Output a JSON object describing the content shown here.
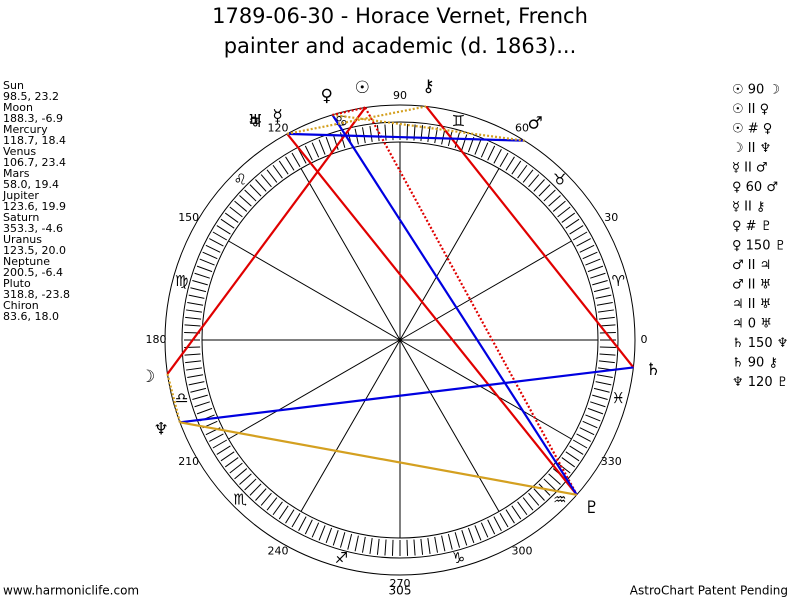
{
  "title": [
    "1789-06-30 - Horace Vernet, French",
    "painter and academic (d. 1863)..."
  ],
  "planets": [
    {
      "name": "Sun",
      "position": "98.5, 23.2",
      "glyph": "☉"
    },
    {
      "name": "Moon",
      "position": "188.3, -6.9",
      "glyph": "☽"
    },
    {
      "name": "Mercury",
      "position": "118.7, 18.4",
      "glyph": "☿"
    },
    {
      "name": "Venus",
      "position": "106.7, 23.4",
      "glyph": "♀"
    },
    {
      "name": "Mars",
      "position": "58.0, 19.4",
      "glyph": "♂"
    },
    {
      "name": "Jupiter",
      "position": "123.6, 19.9",
      "glyph": "♃"
    },
    {
      "name": "Saturn",
      "position": "353.3, -4.6",
      "glyph": "♄"
    },
    {
      "name": "Uranus",
      "position": "123.5, 20.0",
      "glyph": "♅"
    },
    {
      "name": "Neptune",
      "position": "200.5, -6.4",
      "glyph": "♆"
    },
    {
      "name": "Pluto",
      "position": "318.8, -23.8",
      "glyph": "♇"
    },
    {
      "name": "Chiron",
      "position": "83.6, 18.0",
      "glyph": "⚷"
    }
  ],
  "signs": [
    "♈",
    "♉",
    "♊",
    "♋",
    "♌",
    "♍",
    "♎",
    "♏",
    "♐",
    "♑",
    "♒",
    "♓"
  ],
  "degree_labels": [
    0,
    30,
    60,
    90,
    120,
    150,
    180,
    210,
    240,
    270,
    300,
    330
  ],
  "aspects": [
    "☉ 90 ☽",
    "☉ II ♀",
    "☉ # ♀",
    "☽ II ♆",
    "☿ II ♂",
    "♀ 60 ♂",
    "☿ II ⚷",
    "♀ # ♇",
    "♀ 150 ♇",
    "♂ II ♃",
    "♂ II ♅",
    "♃ II ♅",
    "♃ 0 ♅",
    "♄ 150 ♆",
    "♄ 90 ⚷",
    "♆ 120 ♇"
  ],
  "footer": {
    "left": "www.harmoniclife.com",
    "center": "305",
    "right": "AstroChart Patent Pending"
  }
}
